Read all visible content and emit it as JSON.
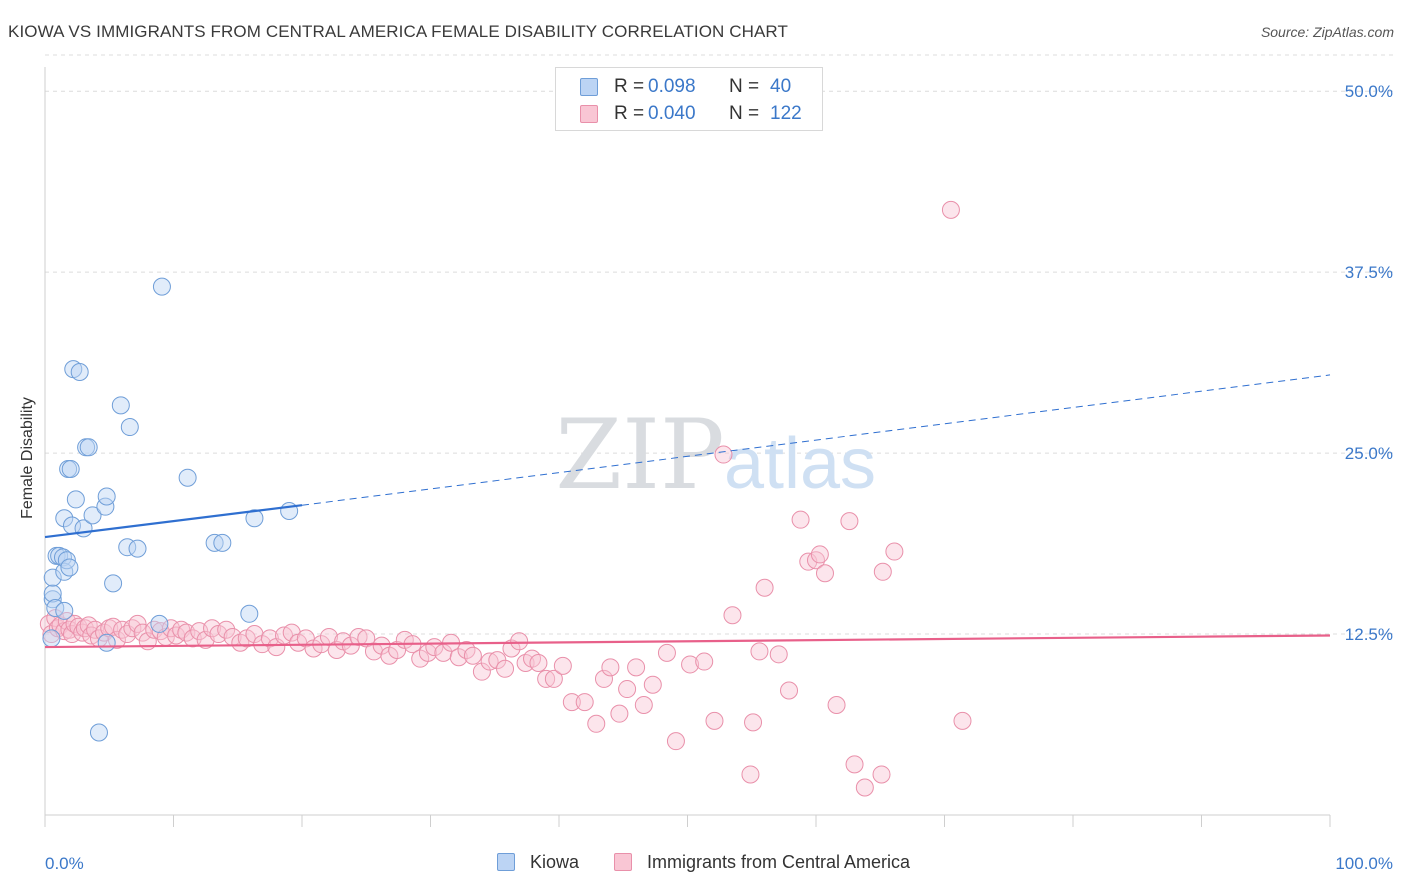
{
  "title": "KIOWA VS IMMIGRANTS FROM CENTRAL AMERICA FEMALE DISABILITY CORRELATION CHART",
  "source": "Source: ZipAtlas.com",
  "watermark": {
    "zip": "ZIP",
    "atlas": "atlas"
  },
  "colors": {
    "blue": "#6f9ed8",
    "blue_fill": "#bcd4f4",
    "blue_line": "#2f6fd0",
    "pink": "#e990aa",
    "pink_fill": "#f9c6d4",
    "pink_line": "#e8608a",
    "tick_text": "#3b78c9"
  },
  "legend_top": [
    {
      "r_label": "R =",
      "r_value": "0.098",
      "n_label": "N =",
      "n_value": "40"
    },
    {
      "r_label": "R =",
      "r_value": "0.040",
      "n_label": "N =",
      "n_value": "122"
    }
  ],
  "legend_bottom": [
    {
      "label": "Kiowa"
    },
    {
      "label": "Immigrants from Central America"
    }
  ],
  "chart_data": {
    "type": "scatter",
    "title": "KIOWA VS IMMIGRANTS FROM CENTRAL AMERICA FEMALE DISABILITY CORRELATION CHART",
    "xlabel": "",
    "ylabel": "Female Disability",
    "xlim": [
      0,
      100
    ],
    "ylim": [
      0,
      52.5
    ],
    "x_tick_labels": [
      "0.0%",
      "100.0%"
    ],
    "y_ticks": [
      12.5,
      25.0,
      37.5,
      50.0
    ],
    "y_tick_labels": [
      "12.5%",
      "25.0%",
      "37.5%",
      "50.0%"
    ],
    "grid": "horizontal dashed",
    "legend": "top-center",
    "series": [
      {
        "name": "Kiowa",
        "points": [
          [
            0.5,
            12.2
          ],
          [
            0.6,
            14.9
          ],
          [
            0.6,
            15.3
          ],
          [
            0.6,
            16.4
          ],
          [
            0.8,
            14.3
          ],
          [
            0.9,
            17.9
          ],
          [
            1.1,
            17.9
          ],
          [
            1.4,
            17.8
          ],
          [
            1.5,
            16.8
          ],
          [
            1.5,
            20.5
          ],
          [
            1.5,
            14.1
          ],
          [
            1.7,
            17.6
          ],
          [
            1.8,
            23.9
          ],
          [
            1.9,
            17.1
          ],
          [
            2.0,
            23.9
          ],
          [
            2.1,
            20.0
          ],
          [
            2.2,
            30.8
          ],
          [
            2.4,
            21.8
          ],
          [
            2.7,
            30.6
          ],
          [
            3.0,
            19.8
          ],
          [
            3.2,
            25.4
          ],
          [
            3.4,
            25.4
          ],
          [
            3.7,
            20.7
          ],
          [
            4.7,
            21.3
          ],
          [
            4.8,
            22.0
          ],
          [
            4.8,
            11.9
          ],
          [
            5.3,
            16.0
          ],
          [
            5.9,
            28.3
          ],
          [
            6.4,
            18.5
          ],
          [
            6.6,
            26.8
          ],
          [
            7.2,
            18.4
          ],
          [
            8.9,
            13.2
          ],
          [
            9.1,
            36.5
          ],
          [
            11.1,
            23.3
          ],
          [
            13.2,
            18.8
          ],
          [
            13.8,
            18.8
          ],
          [
            15.9,
            13.9
          ],
          [
            16.3,
            20.5
          ],
          [
            19.0,
            21.0
          ],
          [
            4.2,
            5.7
          ]
        ],
        "trend": {
          "x": [
            0,
            20,
            100
          ],
          "y": [
            19.2,
            21.4,
            30.4
          ],
          "solid_until_x": 20
        }
      },
      {
        "name": "Immigrants from Central America",
        "points": [
          [
            0.3,
            13.2
          ],
          [
            0.5,
            12.5
          ],
          [
            0.8,
            13.6
          ],
          [
            1.0,
            12.9
          ],
          [
            1.2,
            13.1
          ],
          [
            1.5,
            12.7
          ],
          [
            1.7,
            13.4
          ],
          [
            1.9,
            12.8
          ],
          [
            2.1,
            12.5
          ],
          [
            2.3,
            13.2
          ],
          [
            2.6,
            13.0
          ],
          [
            2.9,
            12.6
          ],
          [
            3.1,
            12.9
          ],
          [
            3.4,
            13.1
          ],
          [
            3.6,
            12.4
          ],
          [
            3.9,
            12.8
          ],
          [
            4.2,
            12.2
          ],
          [
            4.6,
            12.6
          ],
          [
            5.0,
            12.9
          ],
          [
            5.3,
            13.0
          ],
          [
            5.6,
            12.1
          ],
          [
            6.0,
            12.8
          ],
          [
            6.4,
            12.5
          ],
          [
            6.8,
            12.9
          ],
          [
            7.2,
            13.2
          ],
          [
            7.6,
            12.6
          ],
          [
            8.0,
            12.0
          ],
          [
            8.5,
            12.8
          ],
          [
            9.0,
            12.7
          ],
          [
            9.4,
            12.3
          ],
          [
            9.8,
            12.9
          ],
          [
            10.2,
            12.4
          ],
          [
            10.6,
            12.8
          ],
          [
            11.0,
            12.6
          ],
          [
            11.5,
            12.2
          ],
          [
            12.0,
            12.7
          ],
          [
            12.5,
            12.1
          ],
          [
            13.0,
            12.9
          ],
          [
            13.5,
            12.5
          ],
          [
            14.1,
            12.8
          ],
          [
            14.6,
            12.3
          ],
          [
            15.2,
            11.9
          ],
          [
            15.7,
            12.2
          ],
          [
            16.3,
            12.5
          ],
          [
            16.9,
            11.8
          ],
          [
            17.5,
            12.2
          ],
          [
            18.0,
            11.6
          ],
          [
            18.6,
            12.4
          ],
          [
            19.2,
            12.6
          ],
          [
            19.7,
            11.9
          ],
          [
            20.3,
            12.2
          ],
          [
            20.9,
            11.5
          ],
          [
            21.5,
            11.8
          ],
          [
            22.1,
            12.3
          ],
          [
            22.7,
            11.4
          ],
          [
            23.2,
            12.0
          ],
          [
            23.8,
            11.7
          ],
          [
            24.4,
            12.3
          ],
          [
            25.0,
            12.2
          ],
          [
            25.6,
            11.3
          ],
          [
            26.2,
            11.7
          ],
          [
            26.8,
            11.0
          ],
          [
            27.4,
            11.4
          ],
          [
            28.0,
            12.1
          ],
          [
            28.6,
            11.8
          ],
          [
            29.2,
            10.8
          ],
          [
            29.8,
            11.2
          ],
          [
            30.3,
            11.6
          ],
          [
            31.0,
            11.2
          ],
          [
            31.6,
            11.9
          ],
          [
            32.2,
            10.9
          ],
          [
            32.8,
            11.4
          ],
          [
            33.3,
            11.0
          ],
          [
            34.0,
            9.9
          ],
          [
            34.6,
            10.6
          ],
          [
            35.2,
            10.7
          ],
          [
            35.8,
            10.1
          ],
          [
            36.3,
            11.5
          ],
          [
            36.9,
            12.0
          ],
          [
            37.4,
            10.5
          ],
          [
            37.9,
            10.8
          ],
          [
            38.4,
            10.5
          ],
          [
            39.0,
            9.4
          ],
          [
            39.6,
            9.4
          ],
          [
            40.3,
            10.3
          ],
          [
            41.0,
            7.8
          ],
          [
            42.0,
            7.8
          ],
          [
            42.9,
            6.3
          ],
          [
            43.5,
            9.4
          ],
          [
            44.0,
            10.2
          ],
          [
            44.7,
            7.0
          ],
          [
            45.3,
            8.7
          ],
          [
            46.0,
            10.2
          ],
          [
            46.6,
            7.6
          ],
          [
            47.3,
            9.0
          ],
          [
            48.4,
            11.2
          ],
          [
            49.1,
            5.1
          ],
          [
            50.2,
            10.4
          ],
          [
            51.3,
            10.6
          ],
          [
            52.1,
            6.5
          ],
          [
            52.8,
            24.9
          ],
          [
            53.5,
            13.8
          ],
          [
            54.9,
            2.8
          ],
          [
            55.1,
            6.4
          ],
          [
            55.6,
            11.3
          ],
          [
            56.0,
            15.7
          ],
          [
            57.1,
            11.1
          ],
          [
            57.9,
            8.6
          ],
          [
            58.8,
            20.4
          ],
          [
            59.4,
            17.5
          ],
          [
            60.0,
            17.6
          ],
          [
            60.3,
            18.0
          ],
          [
            60.7,
            16.7
          ],
          [
            61.6,
            7.6
          ],
          [
            62.6,
            20.3
          ],
          [
            63.0,
            3.5
          ],
          [
            63.8,
            1.9
          ],
          [
            65.1,
            2.8
          ],
          [
            65.2,
            16.8
          ],
          [
            66.1,
            18.2
          ],
          [
            70.5,
            41.8
          ],
          [
            71.4,
            6.5
          ]
        ],
        "trend": {
          "x": [
            0,
            100
          ],
          "y": [
            11.6,
            12.4
          ],
          "solid_until_x": 100
        }
      }
    ]
  }
}
